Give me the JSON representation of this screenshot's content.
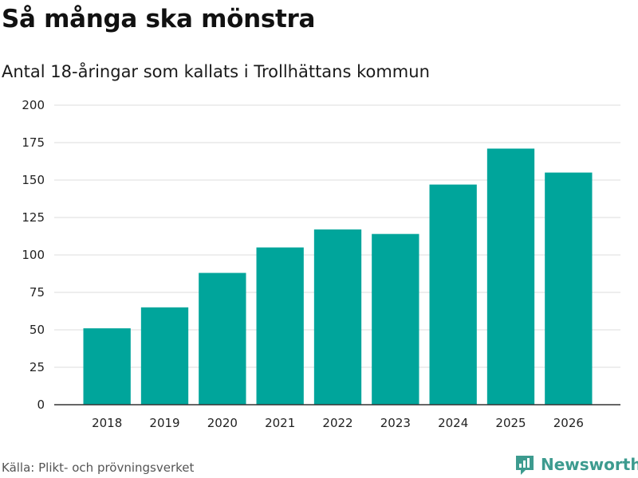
{
  "title": "Så många ska mönstra",
  "subtitle": "Antal 18-åringar som kallats i Trollhättans kommun",
  "source": "Källa: Plikt- och prövningsverket",
  "brand": {
    "name": "Newsworthy",
    "icon": "newsworthy-logo-icon",
    "color": "#3d9b8f"
  },
  "colors": {
    "bar": "#00a59b",
    "grid": "#dddddd",
    "axis": "#333333",
    "tick_text": "#222222"
  },
  "chart_data": {
    "type": "bar",
    "title": "Så många ska mönstra",
    "subtitle": "Antal 18-åringar som kallats i Trollhättans kommun",
    "xlabel": "",
    "ylabel": "",
    "categories": [
      "2018",
      "2019",
      "2020",
      "2021",
      "2022",
      "2023",
      "2024",
      "2025",
      "2026"
    ],
    "values": [
      51,
      65,
      88,
      105,
      117,
      114,
      147,
      171,
      155
    ],
    "ylim": [
      0,
      200
    ],
    "yticks": [
      0,
      25,
      50,
      75,
      100,
      125,
      150,
      175,
      200
    ],
    "grid": true,
    "legend": "none"
  }
}
